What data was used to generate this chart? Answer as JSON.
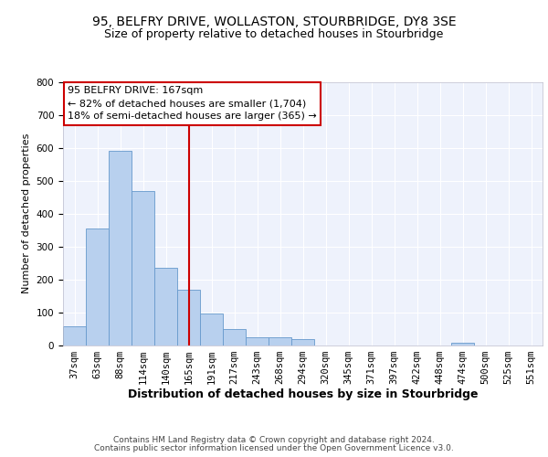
{
  "title": "95, BELFRY DRIVE, WOLLASTON, STOURBRIDGE, DY8 3SE",
  "subtitle": "Size of property relative to detached houses in Stourbridge",
  "xlabel": "Distribution of detached houses by size in Stourbridge",
  "ylabel": "Number of detached properties",
  "categories": [
    "37sqm",
    "63sqm",
    "88sqm",
    "114sqm",
    "140sqm",
    "165sqm",
    "191sqm",
    "217sqm",
    "243sqm",
    "268sqm",
    "294sqm",
    "320sqm",
    "345sqm",
    "371sqm",
    "397sqm",
    "422sqm",
    "448sqm",
    "474sqm",
    "500sqm",
    "525sqm",
    "551sqm"
  ],
  "values": [
    57,
    355,
    590,
    468,
    235,
    168,
    95,
    48,
    25,
    25,
    18,
    0,
    0,
    0,
    0,
    0,
    0,
    8,
    0,
    0,
    0
  ],
  "bar_color": "#b8d0ee",
  "bar_edge_color": "#6699cc",
  "vline_x_index": 5,
  "vline_color": "#cc0000",
  "annotation_line1": "95 BELFRY DRIVE: 167sqm",
  "annotation_line2": "← 82% of detached houses are smaller (1,704)",
  "annotation_line3": "18% of semi-detached houses are larger (365) →",
  "annotation_box_facecolor": "#ffffff",
  "annotation_box_edgecolor": "#cc0000",
  "ylim": [
    0,
    800
  ],
  "yticks": [
    0,
    100,
    200,
    300,
    400,
    500,
    600,
    700,
    800
  ],
  "footer_line1": "Contains HM Land Registry data © Crown copyright and database right 2024.",
  "footer_line2": "Contains public sector information licensed under the Open Government Licence v3.0.",
  "bg_color": "#eef2fc",
  "grid_color": "#ffffff",
  "title_fontsize": 10,
  "subtitle_fontsize": 9,
  "xlabel_fontsize": 9,
  "ylabel_fontsize": 8,
  "tick_fontsize": 7.5,
  "annotation_fontsize": 8,
  "footer_fontsize": 6.5
}
